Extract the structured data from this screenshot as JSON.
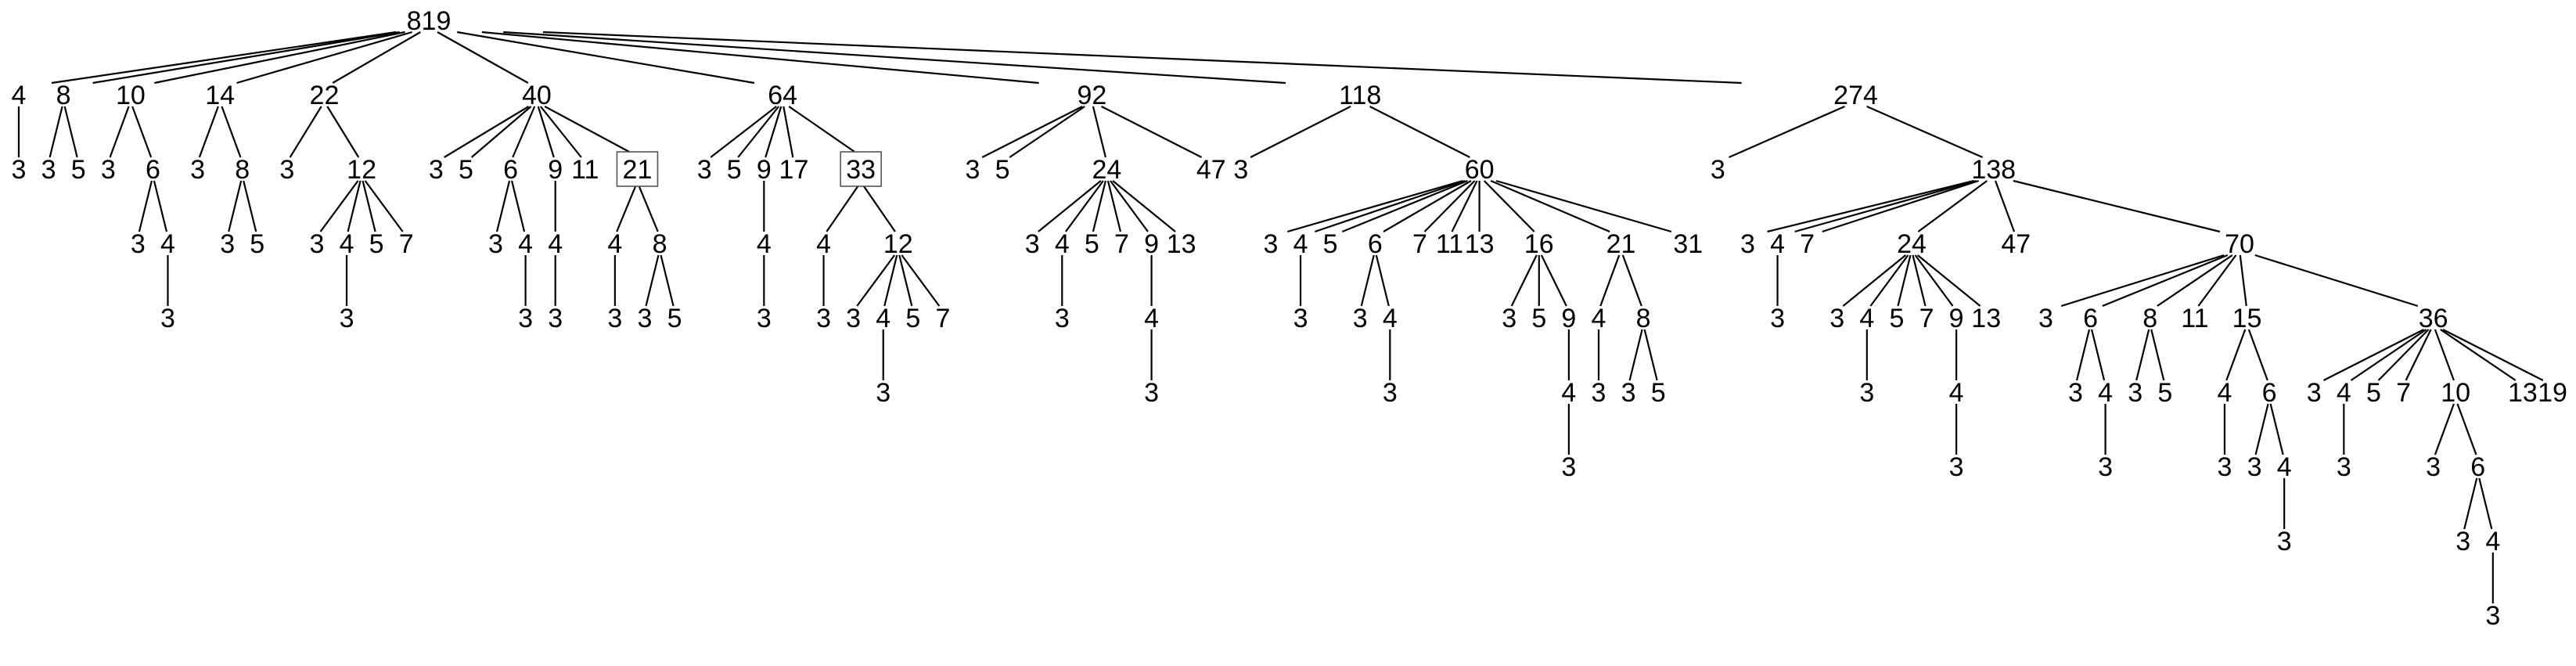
{
  "tree": {
    "label": "819",
    "children": [
      {
        "label": "4",
        "children": [
          {
            "label": "3"
          }
        ]
      },
      {
        "label": "8",
        "children": [
          {
            "label": "3"
          },
          {
            "label": "5"
          }
        ]
      },
      {
        "label": "10",
        "children": [
          {
            "label": "3"
          },
          {
            "label": "6",
            "children": [
              {
                "label": "3"
              },
              {
                "label": "4",
                "children": [
                  {
                    "label": "3"
                  }
                ]
              }
            ]
          }
        ]
      },
      {
        "label": "14",
        "children": [
          {
            "label": "3"
          },
          {
            "label": "8",
            "children": [
              {
                "label": "3"
              },
              {
                "label": "5"
              }
            ]
          }
        ]
      },
      {
        "label": "22",
        "children": [
          {
            "label": "3"
          },
          {
            "label": "12",
            "children": [
              {
                "label": "3"
              },
              {
                "label": "4",
                "children": [
                  {
                    "label": "3"
                  }
                ]
              },
              {
                "label": "5"
              },
              {
                "label": "7"
              }
            ]
          }
        ]
      },
      {
        "label": "40",
        "children": [
          {
            "label": "3"
          },
          {
            "label": "5"
          },
          {
            "label": "6",
            "children": [
              {
                "label": "3"
              },
              {
                "label": "4",
                "children": [
                  {
                    "label": "3"
                  }
                ]
              }
            ]
          },
          {
            "label": "9",
            "children": [
              {
                "label": "4",
                "children": [
                  {
                    "label": "3"
                  }
                ]
              }
            ]
          },
          {
            "label": "11"
          },
          {
            "label": "21",
            "boxed": true,
            "children": [
              {
                "label": "4",
                "children": [
                  {
                    "label": "3"
                  }
                ]
              },
              {
                "label": "8",
                "children": [
                  {
                    "label": "3"
                  },
                  {
                    "label": "5"
                  }
                ]
              }
            ]
          }
        ]
      },
      {
        "label": "64",
        "children": [
          {
            "label": "3"
          },
          {
            "label": "5"
          },
          {
            "label": "9",
            "children": [
              {
                "label": "4",
                "children": [
                  {
                    "label": "3"
                  }
                ]
              }
            ]
          },
          {
            "label": "17"
          },
          {
            "label": "33",
            "boxed": true,
            "children": [
              {
                "label": "4",
                "children": [
                  {
                    "label": "3"
                  }
                ]
              },
              {
                "label": "12",
                "children": [
                  {
                    "label": "3"
                  },
                  {
                    "label": "4",
                    "children": [
                      {
                        "label": "3"
                      }
                    ]
                  },
                  {
                    "label": "5"
                  },
                  {
                    "label": "7"
                  }
                ]
              }
            ]
          }
        ]
      },
      {
        "label": "92",
        "children": [
          {
            "label": "3"
          },
          {
            "label": "5"
          },
          {
            "label": "24",
            "children": [
              {
                "label": "3"
              },
              {
                "label": "4",
                "children": [
                  {
                    "label": "3"
                  }
                ]
              },
              {
                "label": "5"
              },
              {
                "label": "7"
              },
              {
                "label": "9",
                "children": [
                  {
                    "label": "4",
                    "children": [
                      {
                        "label": "3"
                      }
                    ]
                  }
                ]
              },
              {
                "label": "13"
              }
            ]
          },
          {
            "label": "47"
          }
        ]
      },
      {
        "label": "118",
        "children": [
          {
            "label": "3"
          },
          {
            "label": "60",
            "children": [
              {
                "label": "3"
              },
              {
                "label": "4",
                "children": [
                  {
                    "label": "3"
                  }
                ]
              },
              {
                "label": "5"
              },
              {
                "label": "6",
                "children": [
                  {
                    "label": "3"
                  },
                  {
                    "label": "4",
                    "children": [
                      {
                        "label": "3"
                      }
                    ]
                  }
                ]
              },
              {
                "label": "7"
              },
              {
                "label": "11"
              },
              {
                "label": "13"
              },
              {
                "label": "16",
                "children": [
                  {
                    "label": "3"
                  },
                  {
                    "label": "5"
                  },
                  {
                    "label": "9",
                    "children": [
                      {
                        "label": "4",
                        "children": [
                          {
                            "label": "3"
                          }
                        ]
                      }
                    ]
                  }
                ]
              },
              {
                "label": "21",
                "children": [
                  {
                    "label": "4",
                    "children": [
                      {
                        "label": "3"
                      }
                    ]
                  },
                  {
                    "label": "8",
                    "children": [
                      {
                        "label": "3"
                      },
                      {
                        "label": "5"
                      }
                    ]
                  }
                ]
              },
              {
                "label": "31"
              }
            ]
          }
        ]
      },
      {
        "label": "274",
        "children": [
          {
            "label": "3"
          },
          {
            "label": "138",
            "children": [
              {
                "label": "3"
              },
              {
                "label": "4",
                "children": [
                  {
                    "label": "3"
                  }
                ]
              },
              {
                "label": "7"
              },
              {
                "label": "24",
                "children": [
                  {
                    "label": "3"
                  },
                  {
                    "label": "4",
                    "children": [
                      {
                        "label": "3"
                      }
                    ]
                  },
                  {
                    "label": "5"
                  },
                  {
                    "label": "7"
                  },
                  {
                    "label": "9",
                    "children": [
                      {
                        "label": "4",
                        "children": [
                          {
                            "label": "3"
                          }
                        ]
                      }
                    ]
                  },
                  {
                    "label": "13"
                  }
                ]
              },
              {
                "label": "47"
              },
              {
                "label": "70",
                "children": [
                  {
                    "label": "3"
                  },
                  {
                    "label": "6",
                    "children": [
                      {
                        "label": "3"
                      },
                      {
                        "label": "4",
                        "children": [
                          {
                            "label": "3"
                          }
                        ]
                      }
                    ]
                  },
                  {
                    "label": "8",
                    "children": [
                      {
                        "label": "3"
                      },
                      {
                        "label": "5"
                      }
                    ]
                  },
                  {
                    "label": "11"
                  },
                  {
                    "label": "15",
                    "children": [
                      {
                        "label": "4",
                        "children": [
                          {
                            "label": "3"
                          }
                        ]
                      },
                      {
                        "label": "6",
                        "children": [
                          {
                            "label": "3"
                          },
                          {
                            "label": "4",
                            "children": [
                              {
                                "label": "3"
                              }
                            ]
                          }
                        ]
                      }
                    ]
                  },
                  {
                    "label": "36",
                    "children": [
                      {
                        "label": "3"
                      },
                      {
                        "label": "4",
                        "children": [
                          {
                            "label": "3"
                          }
                        ]
                      },
                      {
                        "label": "5"
                      },
                      {
                        "label": "7"
                      },
                      {
                        "label": "10",
                        "children": [
                          {
                            "label": "3"
                          },
                          {
                            "label": "6",
                            "children": [
                              {
                                "label": "3"
                              },
                              {
                                "label": "4",
                                "children": [
                                  {
                                    "label": "3"
                                  }
                                ]
                              }
                            ]
                          }
                        ]
                      },
                      {
                        "label": "13"
                      },
                      {
                        "label": "19"
                      }
                    ]
                  }
                ]
              }
            ]
          }
        ]
      }
    ]
  }
}
